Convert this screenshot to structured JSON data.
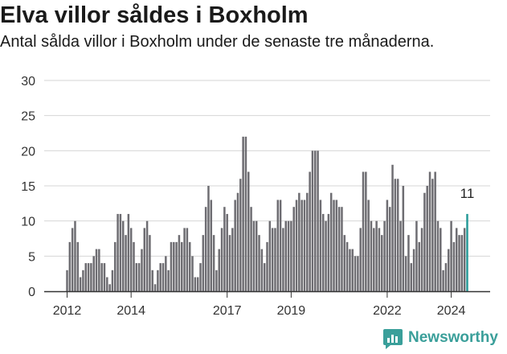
{
  "header": {
    "title": "Elva villor såldes i Boxholm",
    "subtitle": "Antal sålda villor i Boxholm under de senaste tre månaderna."
  },
  "brand": {
    "name": "Newsworthy",
    "icon": "newsworthy-logo-icon"
  },
  "colors": {
    "bar": "#6e6d72",
    "highlight": "#279a98",
    "grid": "#d6d6d6",
    "brand": "#3a9f9a"
  },
  "chart_data": {
    "type": "bar",
    "x_start": "2012-01",
    "x_ticks": [
      "2012",
      "2014",
      "2017",
      "2019",
      "2022",
      "2024"
    ],
    "ylim": [
      0,
      30
    ],
    "y_ticks": [
      0,
      5,
      10,
      15,
      20,
      25,
      30
    ],
    "grid": true,
    "values": [
      3,
      7,
      9,
      10,
      7,
      2,
      3,
      4,
      4,
      4,
      5,
      6,
      6,
      4,
      4,
      2,
      1,
      3,
      7,
      11,
      11,
      10,
      8,
      11,
      9,
      7,
      4,
      4,
      6,
      9,
      10,
      8,
      3,
      1,
      3,
      4,
      4,
      5,
      3,
      7,
      7,
      7,
      8,
      7,
      9,
      9,
      7,
      5,
      2,
      2,
      4,
      8,
      12,
      15,
      13,
      8,
      3,
      6,
      9,
      12,
      11,
      8,
      9,
      13,
      14,
      16,
      22,
      22,
      17,
      12,
      10,
      10,
      8,
      6,
      4,
      7,
      10,
      9,
      9,
      13,
      13,
      9,
      10,
      10,
      10,
      12,
      13,
      14,
      13,
      13,
      14,
      17,
      20,
      20,
      20,
      13,
      11,
      10,
      11,
      14,
      13,
      13,
      12,
      12,
      8,
      7,
      6,
      6,
      5,
      5,
      9,
      17,
      17,
      13,
      10,
      9,
      10,
      9,
      8,
      10,
      13,
      12,
      18,
      16,
      16,
      10,
      15,
      5,
      8,
      4,
      6,
      10,
      7,
      9,
      14,
      15,
      17,
      16,
      17,
      10,
      9,
      3,
      4,
      6,
      10,
      7,
      9,
      8,
      8,
      9,
      11
    ],
    "annotation": {
      "label": "11",
      "index": 150
    }
  }
}
